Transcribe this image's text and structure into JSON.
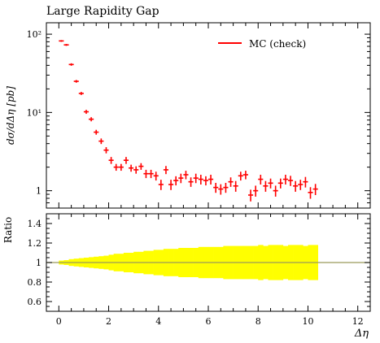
{
  "chart_data": [
    {
      "type": "scatter",
      "title": "Large Rapidity Gap",
      "xlabel": "Δη",
      "ylabel": "dσ/dΔη [pb]",
      "xlim": [
        -0.5,
        12.5
      ],
      "ylim": [
        0.6,
        140
      ],
      "yscale": "log",
      "legend_position": "top-right",
      "colors": {
        "series": "#ff0000"
      },
      "yticks": [
        {
          "value": 1,
          "label": "1"
        },
        {
          "value": 10,
          "label": "10¹"
        },
        {
          "value": 100,
          "label": "10²"
        }
      ],
      "series": [
        {
          "name": "MC (check)",
          "x": [
            0.1,
            0.3,
            0.5,
            0.7,
            0.9,
            1.1,
            1.3,
            1.5,
            1.7,
            1.9,
            2.1,
            2.3,
            2.5,
            2.7,
            2.9,
            3.1,
            3.3,
            3.5,
            3.7,
            3.9,
            4.1,
            4.3,
            4.5,
            4.7,
            4.9,
            5.1,
            5.3,
            5.5,
            5.7,
            5.9,
            6.1,
            6.3,
            6.5,
            6.7,
            6.9,
            7.1,
            7.3,
            7.5,
            7.7,
            7.9,
            8.1,
            8.3,
            8.5,
            8.7,
            8.9,
            9.1,
            9.3,
            9.5,
            9.7,
            9.9,
            10.1,
            10.3
          ],
          "y": [
            82,
            73,
            41,
            25,
            17.5,
            10.2,
            8.2,
            5.6,
            4.3,
            3.3,
            2.45,
            2.0,
            2.0,
            2.45,
            1.95,
            1.85,
            2.05,
            1.65,
            1.65,
            1.55,
            1.2,
            1.85,
            1.2,
            1.35,
            1.45,
            1.6,
            1.3,
            1.45,
            1.4,
            1.35,
            1.4,
            1.1,
            1.05,
            1.1,
            1.3,
            1.15,
            1.55,
            1.6,
            0.88,
            1.0,
            1.4,
            1.15,
            1.25,
            1.0,
            1.25,
            1.4,
            1.35,
            1.15,
            1.2,
            1.3,
            0.95,
            1.05
          ],
          "yerr": [
            2.0,
            2.0,
            1.5,
            1.0,
            0.8,
            0.6,
            0.5,
            0.4,
            0.35,
            0.3,
            0.25,
            0.2,
            0.2,
            0.25,
            0.2,
            0.2,
            0.2,
            0.2,
            0.2,
            0.2,
            0.18,
            0.22,
            0.18,
            0.18,
            0.2,
            0.2,
            0.18,
            0.2,
            0.2,
            0.18,
            0.2,
            0.16,
            0.16,
            0.16,
            0.18,
            0.18,
            0.2,
            0.2,
            0.15,
            0.16,
            0.2,
            0.18,
            0.18,
            0.16,
            0.18,
            0.2,
            0.2,
            0.18,
            0.18,
            0.2,
            0.16,
            0.17
          ]
        }
      ]
    },
    {
      "type": "area",
      "xlabel": "Δη",
      "ylabel": "Ratio",
      "xlim": [
        -0.5,
        12.5
      ],
      "ylim": [
        0.5,
        1.5
      ],
      "colors": {
        "band": "#ffff00",
        "reference_line": "#9a9a5a"
      },
      "xticks": [
        0,
        2,
        4,
        6,
        8,
        10,
        12
      ],
      "yticks": [
        0.6,
        0.8,
        1,
        1.2,
        1.4
      ],
      "reference": 1,
      "band": {
        "x": [
          0.1,
          0.3,
          0.5,
          0.7,
          0.9,
          1.1,
          1.3,
          1.5,
          1.7,
          1.9,
          2.1,
          2.3,
          2.5,
          2.7,
          2.9,
          3.1,
          3.3,
          3.5,
          3.7,
          3.9,
          4.1,
          4.3,
          4.5,
          4.7,
          4.9,
          5.1,
          5.3,
          5.5,
          5.7,
          5.9,
          6.1,
          6.3,
          6.5,
          6.7,
          6.9,
          7.1,
          7.3,
          7.5,
          7.7,
          7.9,
          8.1,
          8.3,
          8.5,
          8.7,
          8.9,
          9.1,
          9.3,
          9.5,
          9.7,
          9.9,
          10.1,
          10.3
        ],
        "half_width": [
          0.02,
          0.025,
          0.035,
          0.04,
          0.045,
          0.05,
          0.055,
          0.06,
          0.065,
          0.07,
          0.08,
          0.09,
          0.09,
          0.1,
          0.1,
          0.11,
          0.11,
          0.12,
          0.12,
          0.13,
          0.13,
          0.14,
          0.14,
          0.14,
          0.15,
          0.15,
          0.15,
          0.15,
          0.16,
          0.16,
          0.16,
          0.16,
          0.16,
          0.17,
          0.17,
          0.17,
          0.17,
          0.17,
          0.17,
          0.17,
          0.18,
          0.17,
          0.18,
          0.18,
          0.18,
          0.17,
          0.18,
          0.18,
          0.18,
          0.17,
          0.18,
          0.18
        ]
      }
    }
  ]
}
